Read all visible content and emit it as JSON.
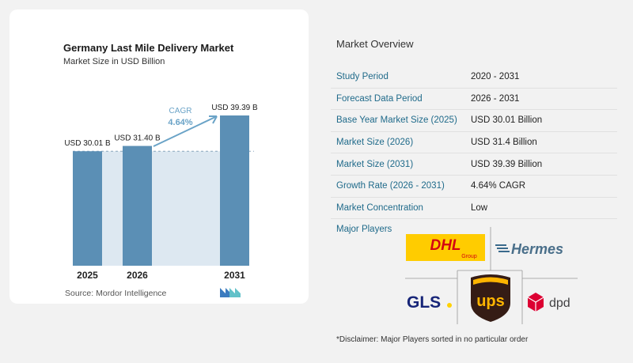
{
  "chart_data": {
    "type": "bar",
    "title": "Germany Last Mile Delivery Market",
    "subtitle": "Market Size in USD Billion",
    "categories": [
      "2025",
      "2026",
      "2031"
    ],
    "values": [
      30.01,
      31.4,
      39.39
    ],
    "data_labels": [
      "USD 30.01 B",
      "USD 31.40 B",
      "USD 39.39 B"
    ],
    "annotation": {
      "label": "CAGR",
      "value": "4.64%"
    },
    "reference_line": 30.01,
    "ylim": [
      0,
      40
    ],
    "colors": {
      "bar": "#5b8fb5",
      "shade": "#dde8f1",
      "arrow": "#6aa3c7"
    }
  },
  "source": "Source:  Mordor Intelligence",
  "overview": {
    "heading": "Market Overview",
    "rows": [
      {
        "key": "Study Period",
        "value": "2020 - 2031"
      },
      {
        "key": "Forecast Data Period",
        "value": "2026 - 2031"
      },
      {
        "key": "Base Year Market Size (2025)",
        "value": "USD 30.01 Billion"
      },
      {
        "key": "Market Size (2026)",
        "value": "USD 31.4 Billion"
      },
      {
        "key": "Market Size (2031)",
        "value": "USD 39.39 Billion"
      },
      {
        "key": "Growth Rate (2026 - 2031)",
        "value": "4.64% CAGR"
      },
      {
        "key": "Market Concentration",
        "value": "Low"
      }
    ],
    "players_label": "Major Players",
    "players": [
      "DHL Group",
      "Hermes",
      "GLS",
      "UPS",
      "dpd"
    ],
    "disclaimer": "*Disclaimer: Major Players sorted in no particular order"
  }
}
